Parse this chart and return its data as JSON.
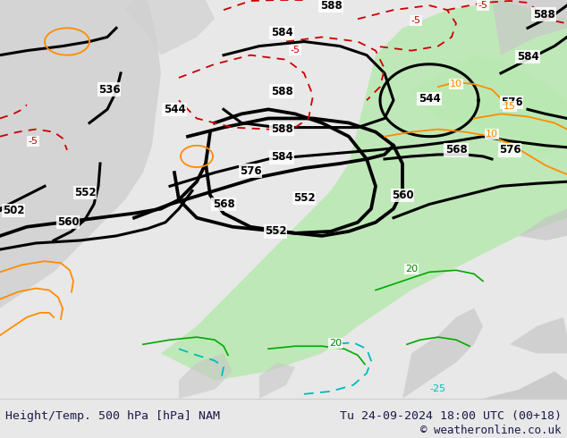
{
  "title_left": "Height/Temp. 500 hPa [hPa] NAM",
  "title_right": "Tu 24-09-2024 18:00 UTC (00+18)",
  "copyright": "© weatheronline.co.uk",
  "bg_color": "#e8e8e8",
  "map_bg": "#f0f0f0",
  "land_color": "#d8d8d8",
  "green_area_color": "#b8e0b0",
  "font_color_dark": "#1a1a4a",
  "contour_color_black": "#000000",
  "contour_color_orange": "#ff8c00",
  "contour_color_red_dashed": "#cc0000",
  "contour_color_cyan": "#00cccc",
  "contour_color_green": "#00aa00",
  "bottom_bar_color": "#f5f5f5",
  "bottom_border_color": "#cccccc"
}
